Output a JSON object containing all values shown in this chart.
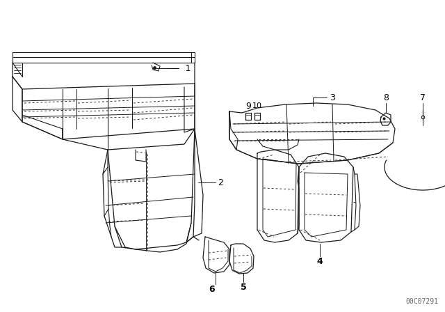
{
  "bg_color": "#ffffff",
  "diagram_code": "00C07291",
  "line_color": "#1a1a1a",
  "text_color": "#000000",
  "dashed_color": "#333333"
}
